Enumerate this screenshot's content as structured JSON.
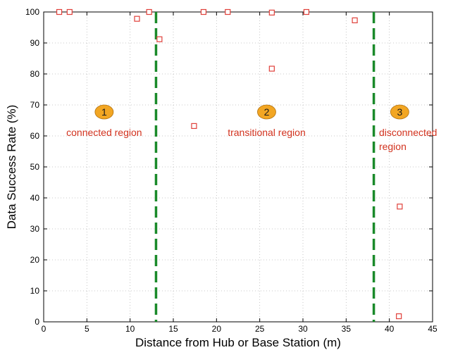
{
  "chart_data": {
    "type": "scatter",
    "xlabel": "Distance from Hub or Base Station (m)",
    "ylabel": "Data Success Rate (%)",
    "xlim": [
      0,
      45
    ],
    "ylim": [
      0,
      100
    ],
    "xticks": [
      0,
      5,
      10,
      15,
      20,
      25,
      30,
      35,
      40,
      45
    ],
    "yticks": [
      0,
      10,
      20,
      30,
      40,
      50,
      60,
      70,
      80,
      90,
      100
    ],
    "grid": true,
    "marker": "square",
    "colors": {
      "points": "#e0403a",
      "boundary": "#1a8a2a",
      "badge": "#f2a623",
      "region_text": "#d2321e"
    },
    "points": [
      {
        "x": 1.8,
        "y": 100
      },
      {
        "x": 3.0,
        "y": 100
      },
      {
        "x": 10.8,
        "y": 97.8
      },
      {
        "x": 12.2,
        "y": 100
      },
      {
        "x": 13.4,
        "y": 91.2
      },
      {
        "x": 17.4,
        "y": 63.2
      },
      {
        "x": 18.5,
        "y": 100
      },
      {
        "x": 21.3,
        "y": 100
      },
      {
        "x": 26.4,
        "y": 99.8
      },
      {
        "x": 26.4,
        "y": 81.7
      },
      {
        "x": 30.4,
        "y": 100
      },
      {
        "x": 36.0,
        "y": 97.3
      },
      {
        "x": 41.2,
        "y": 37.2
      },
      {
        "x": 41.1,
        "y": 1.8
      }
    ],
    "boundaries": [
      13.0,
      38.2
    ],
    "regions": [
      {
        "number": "1",
        "label_lines": [
          "connected region"
        ],
        "x": 7.0
      },
      {
        "number": "2",
        "label_lines": [
          "transitional region"
        ],
        "x": 25.8
      },
      {
        "number": "3",
        "label_lines": [
          "disconnected",
          "region"
        ],
        "x": 41.2
      }
    ]
  }
}
